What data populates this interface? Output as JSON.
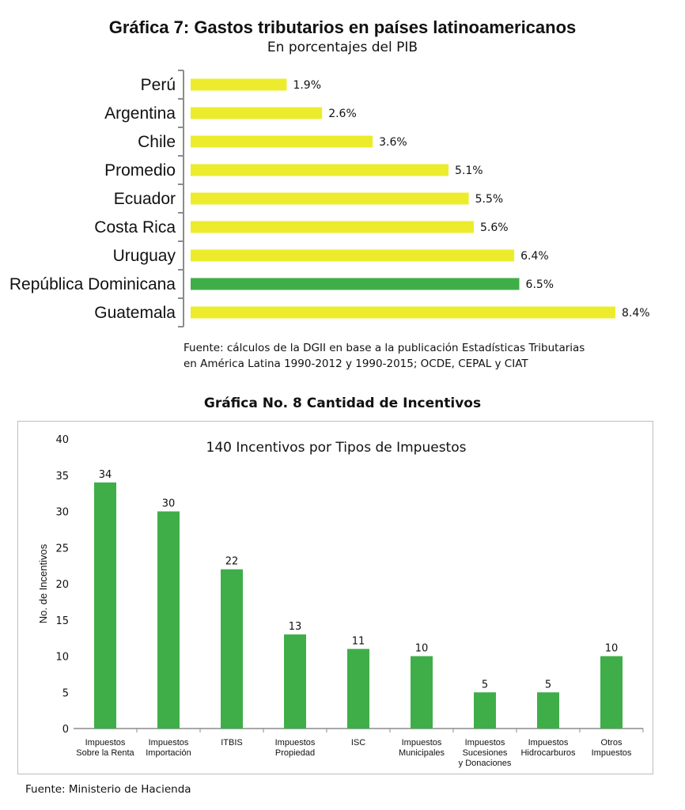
{
  "colors": {
    "bar_yellow": "#ecec2c",
    "bar_highlight": "#3fae49",
    "bar_green": "#3fae49",
    "axis": "#8c8c8c"
  },
  "chart_data": [
    {
      "type": "bar",
      "orientation": "horizontal",
      "title": "Gráfica 7: Gastos tributarios en países latinoamericanos",
      "subtitle": "En porcentajes del PIB",
      "categories": [
        "Perú",
        "Argentina",
        "Chile",
        "Promedio",
        "Ecuador",
        "Costa Rica",
        "Uruguay",
        "República Dominicana",
        "Guatemala"
      ],
      "values": [
        1.9,
        2.6,
        3.6,
        5.1,
        5.5,
        5.6,
        6.4,
        6.5,
        8.4
      ],
      "value_labels": [
        "1.9%",
        "2.6%",
        "3.6%",
        "5.1%",
        "5.5%",
        "5.6%",
        "6.4%",
        "6.5%",
        "8.4%"
      ],
      "highlight": "República Dominicana",
      "source_lines": [
        "Fuente: cálculos de la DGII en base a la publicación Estadísticas Tributarias",
        "en América Latina 1990-2012 y 1990-2015; OCDE, CEPAL y CIAT"
      ]
    },
    {
      "type": "bar",
      "title": "Gráfica No. 8 Cantidad de Incentivos",
      "inner_title": "140 Incentivos por Tipos de Impuestos",
      "ylabel": "No. de Incentivos",
      "ylim": [
        0,
        40
      ],
      "yticks": [
        0,
        5,
        10,
        15,
        20,
        25,
        30,
        35,
        40
      ],
      "categories": [
        [
          "Impuestos",
          "Sobre la Renta"
        ],
        [
          "Impuestos",
          "Importación"
        ],
        [
          "ITBIS"
        ],
        [
          "Impuestos",
          "Propiedad"
        ],
        [
          "ISC"
        ],
        [
          "Impuestos",
          "Municipales"
        ],
        [
          "Impuestos",
          "Sucesiones",
          "y Donaciones"
        ],
        [
          "Impuestos",
          "Hidrocarburos"
        ],
        [
          "Otros",
          "Impuestos"
        ]
      ],
      "values": [
        34,
        30,
        22,
        13,
        11,
        10,
        5,
        5,
        10
      ],
      "grid": false,
      "source": "Fuente: Ministerio de Hacienda"
    }
  ]
}
